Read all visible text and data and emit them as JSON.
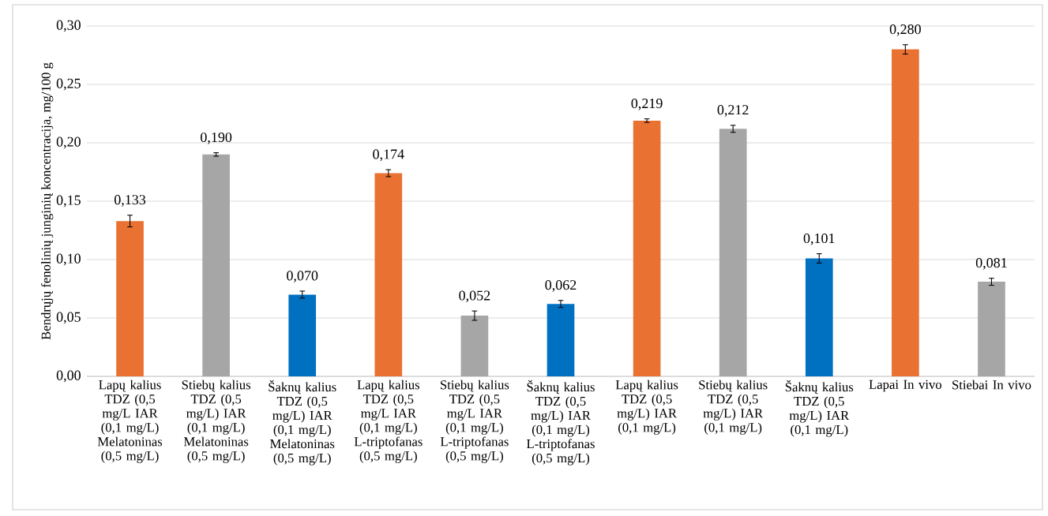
{
  "chart_data": {
    "type": "bar",
    "ylabel": "Bendrųjų fenolinių junginių koncentracija, mg/100 g",
    "categories": [
      "Lapų kalius TDZ (0,5 mg/L IAR (0,1 mg/L) Melatoninas (0,5 mg/L)",
      "Stiebų kalius TDZ (0,5 mg/L) IAR (0,1 mg/L) Melatoninas (0,5 mg/L)",
      "Šaknų kalius TDZ (0,5 mg/L) IAR (0,1 mg/L) Melatoninas (0,5 mg/L)",
      "Lapų kalius TDZ (0,5 mg/L IAR (0,1 mg/L) L-triptofanas (0,5 mg/L)",
      "Stiebų kalius TDZ (0,5 mg/L IAR (0,1 mg/L) L-triptofanas (0,5 mg/L)",
      "Šaknų kalius TDZ (0,5 mg/L) IAR (0,1 mg/L) L-triptofanas (0,5 mg/L)",
      "Lapų kalius TDZ (0,5 mg/L) IAR (0,1 mg/L)",
      "Stiebų kalius TDZ (0,5 mg/L) IAR (0,1 mg/L)",
      "Šaknų kalius TDZ (0,5 mg/L) IAR (0,1 mg/L)",
      "Lapai In vivo",
      "Stiebai In vivo"
    ],
    "values": [
      0.133,
      0.19,
      0.07,
      0.174,
      0.052,
      0.062,
      0.219,
      0.212,
      0.101,
      0.28,
      0.081
    ],
    "value_labels": [
      "0,133",
      "0,190",
      "0,070",
      "0,174",
      "0,052",
      "0,062",
      "0,219",
      "0,212",
      "0,101",
      "0,280",
      "0,081"
    ],
    "errors": [
      0.005,
      0.0015,
      0.003,
      0.003,
      0.004,
      0.003,
      0.0015,
      0.003,
      0.004,
      0.004,
      0.003
    ],
    "colors": [
      "#e97132",
      "#a6a6a6",
      "#0070c0",
      "#e97132",
      "#a6a6a6",
      "#0070c0",
      "#e97132",
      "#a6a6a6",
      "#0070c0",
      "#e97132",
      "#a6a6a6"
    ],
    "ylim": [
      0,
      0.3
    ],
    "yticks": [
      {
        "value": 0,
        "label": "0,00"
      },
      {
        "value": 0.05,
        "label": "0,05"
      },
      {
        "value": 0.1,
        "label": "0,10"
      },
      {
        "value": 0.15,
        "label": "0,15"
      },
      {
        "value": 0.2,
        "label": "0,20"
      },
      {
        "value": 0.25,
        "label": "0,25"
      },
      {
        "value": 0.3,
        "label": "0,30"
      }
    ],
    "grid": "y"
  }
}
